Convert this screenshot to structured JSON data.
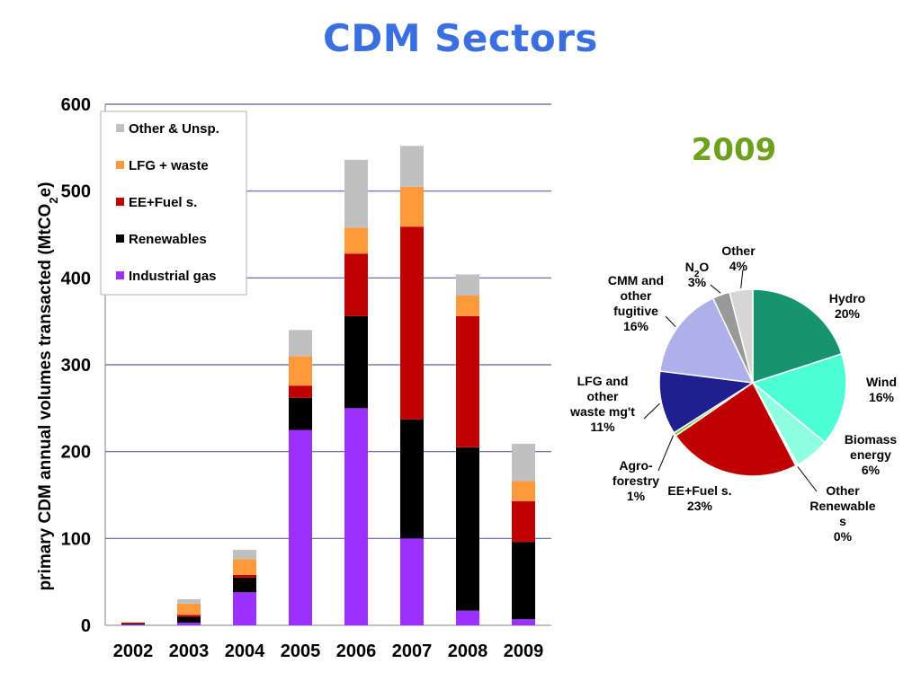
{
  "title": "CDM Sectors",
  "chart_data": [
    {
      "type": "bar",
      "stacked": true,
      "categories": [
        "2002",
        "2003",
        "2004",
        "2005",
        "2006",
        "2007",
        "2008",
        "2009"
      ],
      "ylabel_main": "primary CDM annual volumes transacted (MtCO",
      "ylabel_sub": "2",
      "ylabel_end": "e)",
      "ylim": [
        0,
        600
      ],
      "yticks": [
        0,
        100,
        200,
        300,
        400,
        500,
        600
      ],
      "grid": true,
      "legend_position": "top-left",
      "series": [
        {
          "name": "Industrial gas",
          "color": "#9b30ff",
          "values": [
            1,
            3,
            38,
            225,
            250,
            100,
            17,
            7
          ]
        },
        {
          "name": "Renewables",
          "color": "#000000",
          "values": [
            1,
            7,
            17,
            37,
            106,
            137,
            188,
            89
          ]
        },
        {
          "name": "EE+Fuel s.",
          "color": "#c00000",
          "values": [
            1,
            2,
            3,
            14,
            72,
            222,
            151,
            47
          ]
        },
        {
          "name": "LFG + waste",
          "color": "#ff9a3c",
          "values": [
            0.5,
            13,
            18,
            34,
            30,
            46,
            24,
            23
          ]
        },
        {
          "name": "Other & Unsp.",
          "color": "#c0c0c0",
          "values": [
            0,
            5,
            11,
            30,
            78,
            47,
            24,
            43
          ]
        }
      ]
    },
    {
      "type": "pie",
      "title": "2009",
      "slices": [
        {
          "label_lines": [
            "Hydro",
            "20%"
          ],
          "value": 20,
          "color": "#17946e"
        },
        {
          "label_lines": [
            "Wind",
            "16%"
          ],
          "value": 16,
          "color": "#4dffd2"
        },
        {
          "label_lines": [
            "Biomass",
            "energy",
            "6%"
          ],
          "value": 6,
          "color": "#8effe0"
        },
        {
          "label_lines": [
            "Other",
            "Renewable",
            "s",
            "0%"
          ],
          "value": 0.4,
          "color": "#c8fff0"
        },
        {
          "label_lines": [
            "EE+Fuel s.",
            "23%"
          ],
          "value": 23,
          "color": "#c00000"
        },
        {
          "label_lines": [
            "Agro-",
            "forestry",
            "1%"
          ],
          "value": 0.6,
          "color": "#7cd04a"
        },
        {
          "label_lines": [
            "LFG and",
            "other",
            "waste mg't",
            "11%"
          ],
          "value": 11,
          "color": "#1f1f8f"
        },
        {
          "label_lines": [
            "CMM and",
            "other",
            "fugitive",
            "16%"
          ],
          "value": 16,
          "color": "#aeb0ea"
        },
        {
          "label_lines": [
            "N2O",
            "3%"
          ],
          "value": 3,
          "color": "#999999"
        },
        {
          "label_lines": [
            "Other",
            "4%"
          ],
          "value": 4,
          "color": "#d6d6d6"
        }
      ]
    }
  ]
}
